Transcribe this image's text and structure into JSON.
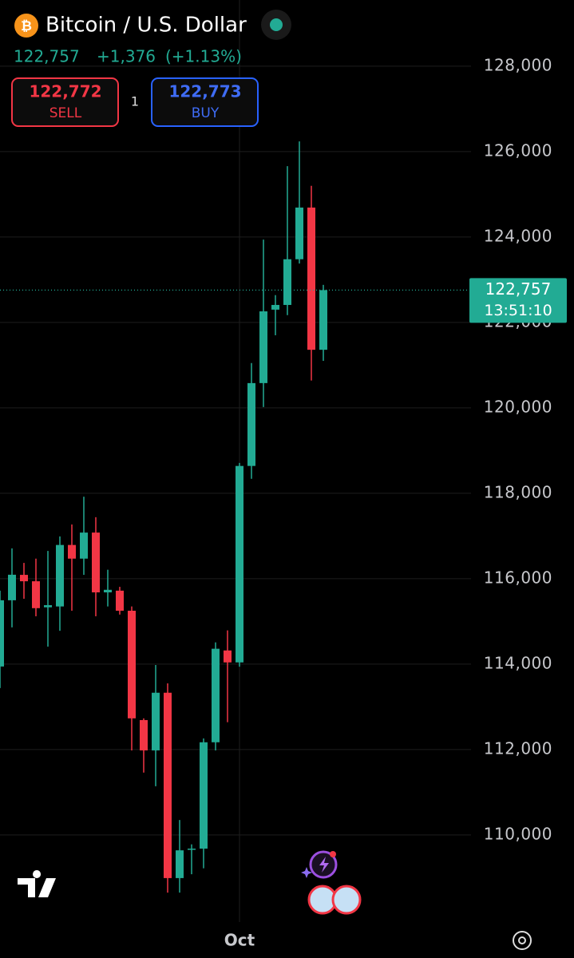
{
  "header": {
    "symbol_title": "Bitcoin / U.S. Dollar",
    "price": "122,757",
    "change": "+1,376",
    "change_pct": "(+1.13%)",
    "sell_price": "122,772",
    "sell_label": "SELL",
    "spread": "1",
    "buy_price": "122,773",
    "buy_label": "BUY"
  },
  "chart_data": {
    "type": "candlestick",
    "categories": [
      null,
      null,
      null,
      null,
      null,
      null,
      null,
      null,
      null,
      null,
      null,
      null,
      null,
      null,
      null,
      null,
      null,
      null,
      null,
      null,
      "Oct",
      null,
      null,
      null,
      null,
      null,
      null,
      null
    ],
    "open": [
      113944,
      115495,
      116090,
      115940,
      115330,
      115350,
      116790,
      116470,
      117080,
      115680,
      115720,
      115250,
      112690,
      111980,
      113330,
      108990,
      109660,
      109680,
      112170,
      114320,
      114040,
      118640,
      120580,
      122300,
      122410,
      123480,
      124690,
      121360
    ],
    "close": [
      115495,
      116093,
      115940,
      115310,
      115380,
      116790,
      116470,
      117080,
      115680,
      115740,
      115250,
      112730,
      111980,
      113330,
      108990,
      109640,
      109680,
      112170,
      114360,
      114040,
      118640,
      120580,
      122260,
      122410,
      123480,
      124690,
      121360,
      122757
    ],
    "high": [
      115720,
      116710,
      116370,
      116470,
      116650,
      116990,
      117270,
      117920,
      117440,
      116210,
      115810,
      115350,
      112730,
      113980,
      113550,
      110350,
      109780,
      112260,
      114510,
      114790,
      118710,
      121050,
      123940,
      122640,
      125660,
      126240,
      125200,
      122880
    ],
    "low": [
      113439,
      114860,
      115530,
      115120,
      114410,
      114780,
      115250,
      116090,
      115120,
      115350,
      115160,
      111980,
      111460,
      111140,
      108650,
      108650,
      109080,
      109220,
      111980,
      112640,
      113940,
      118340,
      120020,
      121700,
      122170,
      123380,
      120640,
      121100
    ],
    "up_color": "#22ab94",
    "down_color": "#f23645",
    "ylim": [
      107960,
      129550
    ],
    "yticks": [
      {
        "value": 110000,
        "label": "110,000"
      },
      {
        "value": 112000,
        "label": "112,000"
      },
      {
        "value": 114000,
        "label": "114,000"
      },
      {
        "value": 116000,
        "label": "116,000"
      },
      {
        "value": 118000,
        "label": "118,000"
      },
      {
        "value": 120000,
        "label": "120,000"
      },
      {
        "value": 122000,
        "label": "122,000"
      },
      {
        "value": 124000,
        "label": "124,000"
      },
      {
        "value": 126000,
        "label": "126,000"
      },
      {
        "value": 128000,
        "label": "128,000"
      }
    ],
    "grid": true,
    "last_price": {
      "value": 122757,
      "label": "122,757"
    },
    "timer": "13:51:10"
  }
}
